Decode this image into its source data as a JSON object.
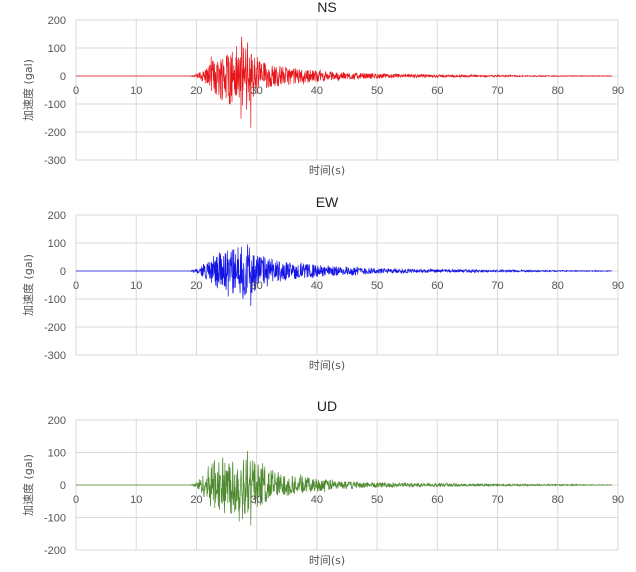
{
  "chart_data": [
    {
      "type": "line",
      "title": "NS",
      "xlabel": "时间(s)",
      "ylabel": "加速度 (gal)",
      "xlim": [
        0,
        90
      ],
      "ylim": [
        -300,
        200
      ],
      "x_ticks": [
        "0",
        "10",
        "20",
        "30",
        "40",
        "50",
        "60",
        "70",
        "80",
        "90"
      ],
      "y_ticks": [
        "200",
        "100",
        "0",
        "-100",
        "-200",
        "-300"
      ],
      "color": "#e8161b",
      "series": [
        {
          "values": {
            "t": [
              0,
              19,
              20,
              21,
              22,
              23,
              24,
              25,
              26,
              27,
              28,
              29,
              30,
              31,
              32,
              33,
              35,
              38,
              42,
              48,
              55,
              65,
              75,
              89
            ],
            "env": [
              0,
              0,
              8,
              20,
              40,
              70,
              85,
              95,
              110,
              120,
              115,
              90,
              75,
              55,
              45,
              40,
              32,
              25,
              16,
              10,
              6,
              4,
              2,
              1
            ],
            "peak_max": 120,
            "peak_min": -185
          }
        }
      ]
    },
    {
      "type": "line",
      "title": "EW",
      "xlabel": "时间(s)",
      "ylabel": "加速度 (gal)",
      "xlim": [
        0,
        90
      ],
      "ylim": [
        -300,
        200
      ],
      "x_ticks": [
        "0",
        "10",
        "20",
        "30",
        "40",
        "50",
        "60",
        "70",
        "80",
        "90"
      ],
      "y_ticks": [
        "200",
        "100",
        "0",
        "-100",
        "-200",
        "-300"
      ],
      "color": "#1414e6",
      "series": [
        {
          "values": {
            "t": [
              0,
              19,
              20,
              21,
              22,
              23,
              24,
              25,
              26,
              27,
              28,
              29,
              30,
              31,
              32,
              34,
              36,
              40,
              45,
              50,
              60,
              70,
              80,
              89
            ],
            "env": [
              0,
              0,
              8,
              20,
              35,
              55,
              70,
              75,
              80,
              85,
              90,
              85,
              65,
              55,
              45,
              38,
              30,
              22,
              15,
              10,
              6,
              4,
              2,
              1
            ],
            "peak_max": 95,
            "peak_min": -125
          }
        }
      ]
    },
    {
      "type": "line",
      "title": "UD",
      "xlabel": "时间(s)",
      "ylabel": "加速度 (gal)",
      "xlim": [
        0,
        90
      ],
      "ylim": [
        -200,
        200
      ],
      "x_ticks": [
        "0",
        "10",
        "20",
        "30",
        "40",
        "50",
        "60",
        "70",
        "80",
        "90"
      ],
      "y_ticks": [
        "200",
        "100",
        "0",
        "-100",
        "-200"
      ],
      "color": "#4e8b2f",
      "series": [
        {
          "values": {
            "t": [
              0,
              19,
              20,
              21,
              22,
              23,
              24,
              25,
              26,
              27,
              28,
              29,
              30,
              31,
              32,
              34,
              36,
              40,
              45,
              50,
              60,
              70,
              80,
              89
            ],
            "env": [
              0,
              0,
              10,
              30,
              60,
              80,
              85,
              88,
              90,
              95,
              95,
              85,
              70,
              60,
              52,
              40,
              30,
              20,
              12,
              8,
              5,
              3,
              2,
              1
            ],
            "peak_max": 105,
            "peak_min": -125
          }
        }
      ]
    }
  ]
}
